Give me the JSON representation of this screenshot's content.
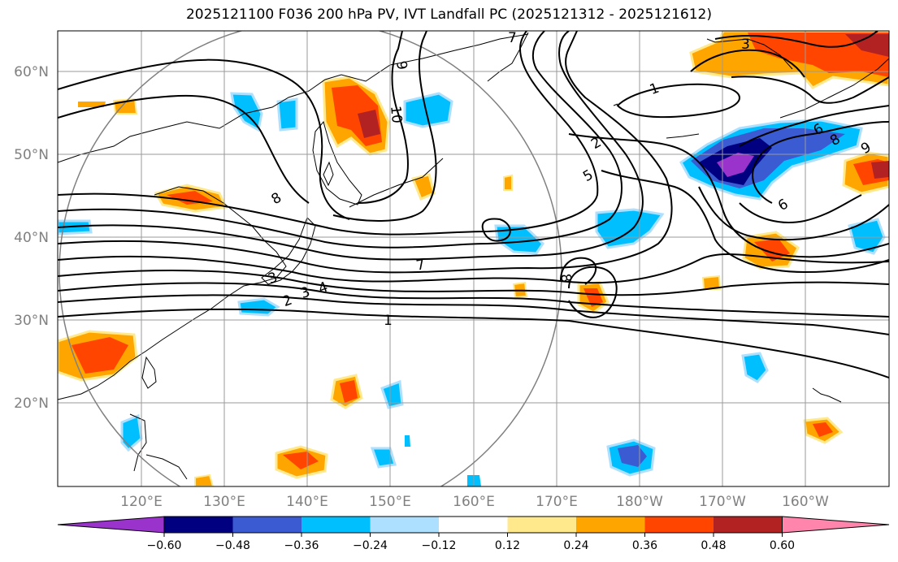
{
  "title": "2025121100 F036 200 hPa PV, IVT Landfall PC (2025121312 - 2025121612)",
  "lat_labels": [
    "20°N",
    "30°N",
    "40°N",
    "50°N",
    "60°N"
  ],
  "lon_labels": [
    "120°E",
    "130°E",
    "140°E",
    "150°E",
    "160°E",
    "170°E",
    "180°W",
    "170°W",
    "160°W"
  ],
  "colorbar": {
    "tick_labels": [
      "−0.60",
      "−0.48",
      "−0.36",
      "−0.24",
      "−0.12",
      "0.12",
      "0.24",
      "0.36",
      "0.48",
      "0.60"
    ],
    "colors": [
      "#9933cc",
      "#000080",
      "#3a5bd1",
      "#00bfff",
      "#addfff",
      "#ffffff",
      "#ffe98c",
      "#ffa500",
      "#ff4500",
      "#b22222",
      "#ff85ad"
    ]
  },
  "contour_labels": [
    "7",
    "9",
    "10",
    "1",
    "2",
    "5",
    "6",
    "8",
    "3",
    "9",
    "6",
    "8",
    "7",
    "4",
    "3",
    "2",
    "1",
    "8",
    "3"
  ]
}
